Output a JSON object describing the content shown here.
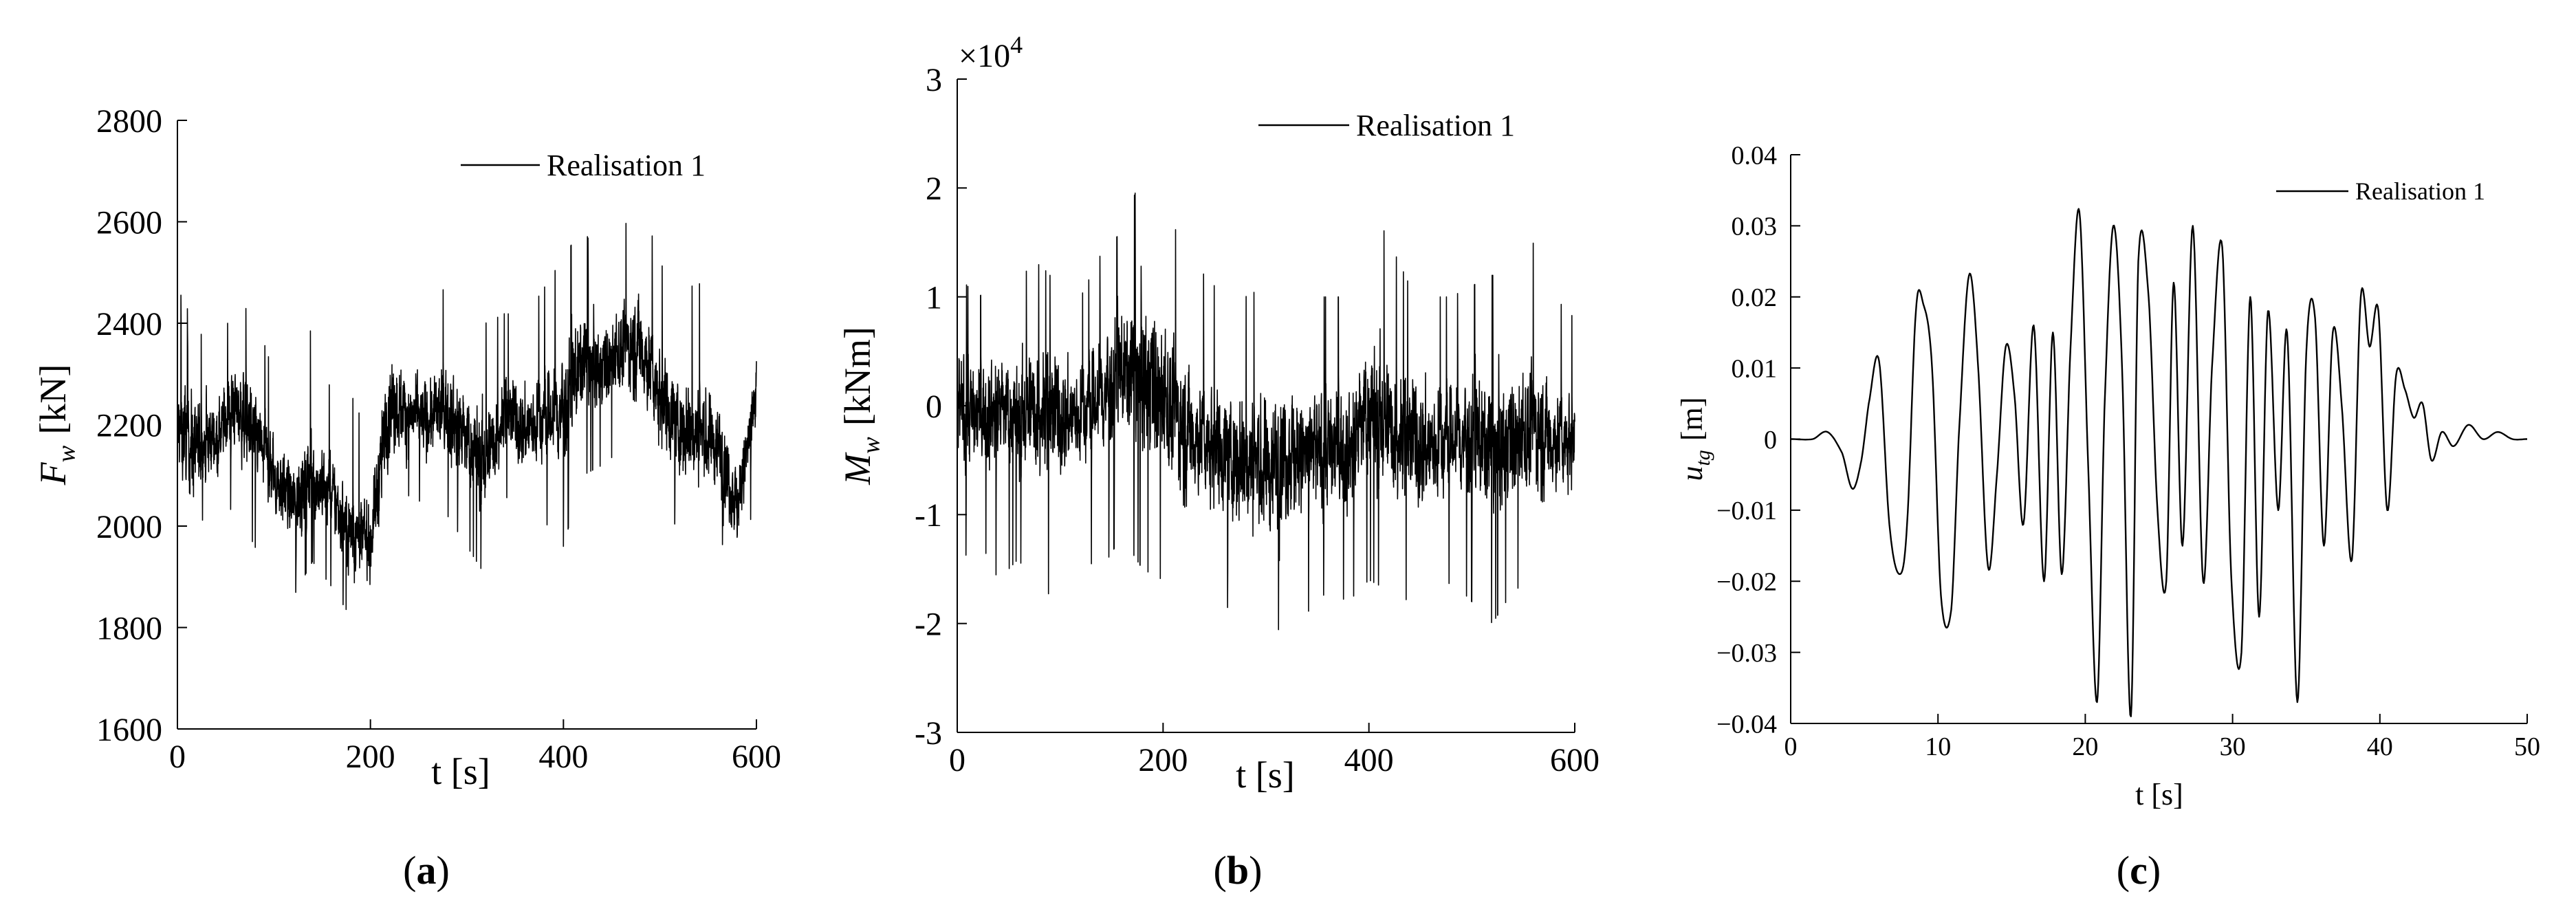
{
  "chart_data": [
    {
      "type": "line",
      "panel_label": "(a)",
      "panel_letter": "a",
      "xlabel": "t [s]",
      "ylabel": "F_w [kN]",
      "ylabel_symbol": "F",
      "ylabel_sub": "w",
      "ylabel_unit": "[kN]",
      "xlim": [
        0,
        600
      ],
      "ylim": [
        1600,
        2800
      ],
      "xticks": [
        0,
        200,
        400,
        600
      ],
      "yticks": [
        1600,
        1800,
        2000,
        2200,
        2400,
        2600,
        2800
      ],
      "legend": {
        "position": "top-right",
        "entries": [
          "Realisation 1"
        ]
      },
      "series": [
        {
          "name": "Realisation 1",
          "color": "#000000",
          "envelope_x": [
            0,
            20,
            40,
            60,
            80,
            100,
            120,
            140,
            160,
            180,
            200,
            220,
            240,
            260,
            280,
            300,
            320,
            340,
            360,
            380,
            400,
            420,
            440,
            460,
            480,
            500,
            520,
            540,
            560,
            580,
            600
          ],
          "envelope_min": [
            1920,
            1880,
            2010,
            2040,
            1960,
            1900,
            1860,
            1930,
            1880,
            1820,
            1780,
            2040,
            2060,
            2040,
            2020,
            1960,
            1900,
            2060,
            2000,
            2010,
            1960,
            2100,
            2120,
            2150,
            2120,
            2050,
            1990,
            1970,
            1990,
            1880,
            2070
          ],
          "envelope_max": [
            2470,
            2390,
            2340,
            2440,
            2420,
            2300,
            2260,
            2400,
            2260,
            2260,
            2170,
            2560,
            2420,
            2420,
            2480,
            2460,
            2400,
            2420,
            2410,
            2470,
            2530,
            2590,
            2510,
            2580,
            2650,
            2520,
            2460,
            2480,
            2440,
            2250,
            2460
          ],
          "envelope_mean": [
            2190,
            2150,
            2180,
            2240,
            2180,
            2100,
            2040,
            2100,
            2060,
            1990,
            1970,
            2250,
            2220,
            2210,
            2230,
            2170,
            2130,
            2230,
            2190,
            2210,
            2230,
            2330,
            2310,
            2350,
            2360,
            2260,
            2200,
            2180,
            2160,
            2040,
            2250
          ]
        }
      ]
    },
    {
      "type": "line",
      "panel_label": "(b)",
      "panel_letter": "b",
      "xlabel": "t [s]",
      "ylabel": "M_w [kNm]",
      "ylabel_symbol": "M",
      "ylabel_sub": "w",
      "ylabel_unit": "[kNm]",
      "scale_factor_prefix": "×10",
      "scale_factor_exp": "4",
      "xlim": [
        0,
        600
      ],
      "ylim": [
        -3,
        3
      ],
      "xticks": [
        0,
        200,
        400,
        600
      ],
      "yticks": [
        -3,
        -2,
        -1,
        0,
        1,
        2,
        3
      ],
      "legend": {
        "position": "top-right",
        "entries": [
          "Realisation 1"
        ]
      },
      "series": [
        {
          "name": "Realisation 1",
          "color": "#000000",
          "envelope_x": [
            0,
            20,
            40,
            60,
            80,
            100,
            120,
            140,
            160,
            180,
            200,
            220,
            240,
            260,
            280,
            300,
            320,
            340,
            360,
            380,
            400,
            420,
            440,
            460,
            480,
            500,
            520,
            540,
            560,
            580,
            600
          ],
          "envelope_min": [
            -1.5,
            -1.2,
            -1.6,
            -1.4,
            -1.9,
            -1.5,
            -1.4,
            -1.5,
            -1.2,
            -1.5,
            -1.6,
            -1.8,
            -1.5,
            -1.8,
            -2.2,
            -2.3,
            -1.9,
            -1.9,
            -1.7,
            -1.8,
            -1.6,
            -1.7,
            -1.8,
            -1.9,
            -1.6,
            -1.8,
            -2.0,
            -1.7,
            -1.6,
            -1.6,
            -1.3
          ],
          "envelope_max": [
            1.2,
            1.0,
            1.1,
            1.2,
            1.3,
            1.1,
            1.0,
            1.4,
            1.6,
            2.15,
            1.8,
            1.5,
            1.2,
            1.0,
            1.0,
            1.1,
            1.2,
            1.0,
            1.0,
            1.0,
            1.9,
            1.5,
            1.1,
            1.0,
            1.0,
            1.1,
            1.2,
            1.1,
            1.5,
            1.0,
            0.8
          ],
          "envelope_mean": [
            0.0,
            -0.1,
            0.0,
            -0.1,
            0.0,
            -0.1,
            -0.1,
            0.1,
            0.3,
            0.3,
            0.1,
            -0.2,
            -0.3,
            -0.4,
            -0.5,
            -0.6,
            -0.4,
            -0.5,
            -0.4,
            -0.4,
            0.0,
            -0.2,
            -0.3,
            -0.4,
            -0.3,
            -0.3,
            -0.4,
            -0.3,
            -0.2,
            -0.3,
            -0.3
          ]
        }
      ]
    },
    {
      "type": "line",
      "panel_label": "(c)",
      "panel_letter": "c",
      "xlabel": "t [s]",
      "ylabel": "u_tg [m]",
      "ylabel_symbol": "u",
      "ylabel_sub": "tg",
      "ylabel_unit": "[m]",
      "xlim": [
        0,
        50
      ],
      "ylim": [
        -0.04,
        0.04
      ],
      "xticks": [
        0,
        10,
        20,
        30,
        40,
        50
      ],
      "yticks": [
        -0.04,
        -0.03,
        -0.02,
        -0.01,
        0,
        0.01,
        0.02,
        0.03,
        0.04
      ],
      "ytick_labels": [
        "−0.04",
        "−0.03",
        "−0.02",
        "−0.01",
        "0",
        "0.01",
        "0.02",
        "0.03",
        "0.04"
      ],
      "legend": {
        "position": "top-right",
        "entries": [
          "Realisation 1"
        ]
      },
      "series": [
        {
          "name": "Realisation 1",
          "color": "#000000",
          "x": [
            0,
            1.5,
            2.5,
            3.5,
            4.2,
            4.8,
            5.3,
            6.0,
            6.7,
            7.4,
            7.9,
            8.5,
            9.0,
            9.6,
            10.2,
            10.9,
            11.4,
            12.1,
            12.7,
            13.4,
            14.0,
            14.6,
            15.2,
            15.8,
            16.5,
            17.2,
            17.8,
            18.4,
            19.0,
            19.6,
            20.2,
            20.8,
            21.3,
            21.9,
            22.5,
            23.1,
            23.6,
            24.3,
            24.9,
            25.5,
            26.0,
            26.6,
            27.3,
            28.0,
            28.6,
            29.3,
            29.9,
            30.6,
            31.2,
            31.8,
            32.4,
            33.1,
            33.7,
            34.4,
            35.0,
            35.6,
            36.2,
            36.8,
            37.4,
            38.1,
            38.7,
            39.3,
            39.9,
            40.5,
            41.1,
            41.7,
            42.3,
            42.9,
            43.5,
            44.2,
            45.0,
            46.0,
            47.0,
            48.0,
            49.0,
            50.0
          ],
          "y": [
            0,
            0.0,
            0.001,
            -0.002,
            -0.007,
            -0.003,
            0.005,
            0.011,
            -0.012,
            -0.019,
            -0.012,
            0.018,
            0.019,
            0.01,
            -0.022,
            -0.024,
            0.0,
            0.023,
            0.011,
            -0.018,
            -0.005,
            0.013,
            0.006,
            -0.012,
            0.016,
            -0.02,
            0.015,
            -0.019,
            0.013,
            0.032,
            -0.004,
            -0.037,
            0.004,
            0.03,
            0.01,
            -0.039,
            0.025,
            0.02,
            -0.01,
            -0.02,
            0.022,
            -0.015,
            0.03,
            -0.02,
            0.01,
            0.027,
            -0.019,
            -0.03,
            0.02,
            -0.025,
            0.018,
            -0.01,
            0.015,
            -0.037,
            0.012,
            0.017,
            -0.015,
            0.015,
            0.005,
            -0.017,
            0.02,
            0.013,
            0.018,
            -0.01,
            0.009,
            0.007,
            0.003,
            0.005,
            -0.003,
            0.001,
            -0.001,
            0.002,
            0.0,
            0.001,
            0.0,
            0.0
          ]
        }
      ]
    }
  ]
}
